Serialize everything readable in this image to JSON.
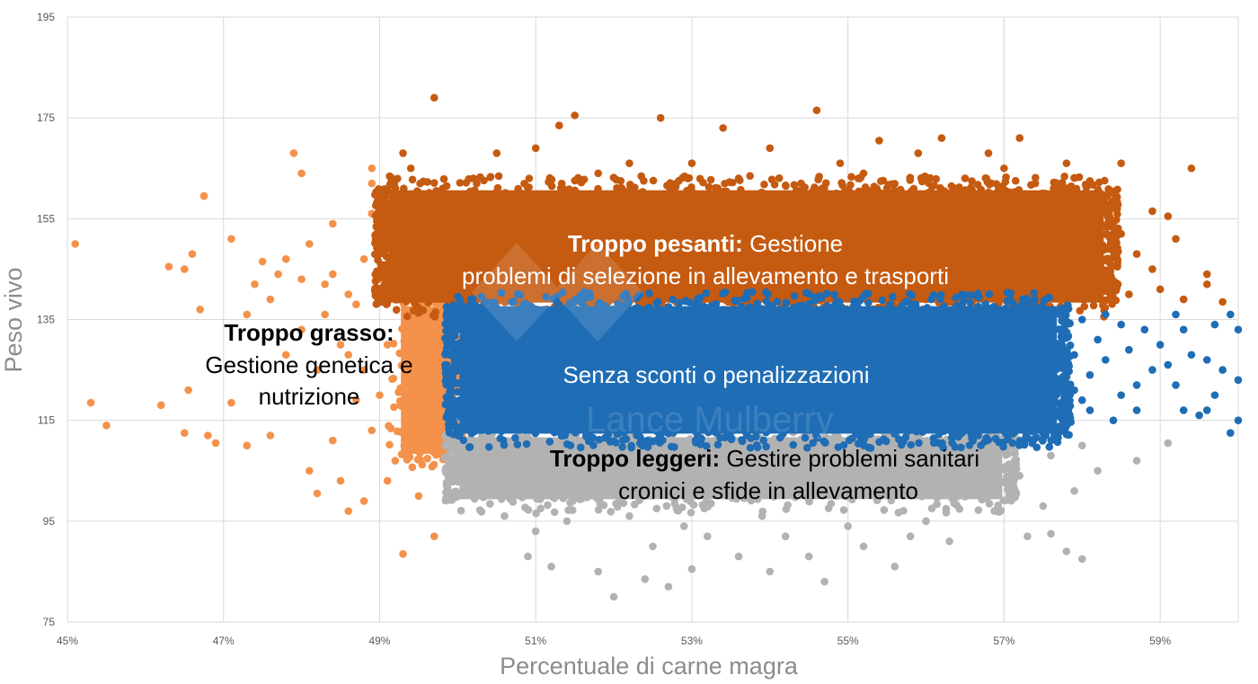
{
  "chart_data": {
    "type": "scatter",
    "title": "",
    "xlabel": "Percentuale di carne magra",
    "ylabel": "Peso vivo",
    "xlim": [
      45,
      60
    ],
    "ylim": [
      75,
      195
    ],
    "xticks": [
      45,
      47,
      49,
      51,
      53,
      55,
      57,
      59
    ],
    "xtick_labels": [
      "45%",
      "47%",
      "49%",
      "51%",
      "53%",
      "55%",
      "57%",
      "59%"
    ],
    "yticks": [
      75,
      95,
      115,
      135,
      155,
      175,
      195
    ],
    "ytick_labels": [
      "75",
      "95",
      "115",
      "135",
      "155",
      "175",
      "195"
    ],
    "grid": true,
    "legend": "none",
    "watermark": "Lance Mulberry",
    "series": [
      {
        "color": "#F4914A",
        "dense_region": [
          49.25,
          50.0,
          108,
          138
        ],
        "points": [
          [
            45.1,
            150
          ],
          [
            45.3,
            118.5
          ],
          [
            45.5,
            114
          ],
          [
            46.2,
            118
          ],
          [
            46.3,
            145.5
          ],
          [
            46.5,
            145
          ],
          [
            46.6,
            148
          ],
          [
            46.5,
            112.5
          ],
          [
            46.55,
            121
          ],
          [
            46.7,
            137
          ],
          [
            46.75,
            159.5
          ],
          [
            46.8,
            112
          ],
          [
            46.9,
            110.5
          ],
          [
            47.1,
            151
          ],
          [
            47.1,
            118.5
          ],
          [
            47.3,
            136
          ],
          [
            47.3,
            110
          ],
          [
            47.4,
            142
          ],
          [
            47.5,
            146.5
          ],
          [
            47.6,
            112
          ],
          [
            47.7,
            144
          ],
          [
            47.8,
            147
          ],
          [
            47.9,
            168
          ],
          [
            48.0,
            164
          ],
          [
            48.1,
            150
          ],
          [
            48.1,
            105
          ],
          [
            48.2,
            100.5
          ],
          [
            48.3,
            142
          ],
          [
            48.4,
            154
          ],
          [
            48.5,
            103
          ],
          [
            48.6,
            97
          ],
          [
            48.7,
            119
          ],
          [
            48.8,
            99
          ],
          [
            48.9,
            165
          ],
          [
            48.9,
            162
          ],
          [
            49.3,
            88.5
          ],
          [
            49.7,
            92
          ],
          [
            49.1,
            103
          ],
          [
            48.5,
            130
          ],
          [
            48.2,
            125
          ],
          [
            48.7,
            138
          ],
          [
            49.0,
            120
          ],
          [
            47.8,
            128
          ],
          [
            48.0,
            133
          ],
          [
            49.0,
            150
          ],
          [
            48.9,
            156
          ],
          [
            49.2,
            107
          ],
          [
            49.5,
            100
          ],
          [
            48.4,
            144
          ],
          [
            48.6,
            140
          ],
          [
            48.8,
            147
          ],
          [
            49.0,
            143
          ],
          [
            48.3,
            136
          ],
          [
            48.6,
            128
          ],
          [
            48.8,
            125
          ],
          [
            49.1,
            130
          ],
          [
            48.9,
            113
          ],
          [
            48.4,
            111
          ],
          [
            48.0,
            143
          ],
          [
            47.6,
            139
          ]
        ]
      },
      {
        "color": "#C55A11",
        "dense_region": [
          49.1,
          58.3,
          138,
          161
        ],
        "points": [
          [
            49.7,
            179
          ],
          [
            51.3,
            173.5
          ],
          [
            51.5,
            175.5
          ],
          [
            52.6,
            175
          ],
          [
            53.4,
            173
          ],
          [
            54.6,
            176.5
          ],
          [
            54.0,
            169
          ],
          [
            55.4,
            170.5
          ],
          [
            56.2,
            171
          ],
          [
            57.2,
            171
          ],
          [
            56.8,
            168
          ],
          [
            58.5,
            166
          ],
          [
            59.4,
            165
          ],
          [
            58.1,
            162.5
          ],
          [
            59.1,
            155.5
          ],
          [
            59.6,
            144
          ],
          [
            59.8,
            138.5
          ],
          [
            58.9,
            156.5
          ],
          [
            51.0,
            169
          ],
          [
            49.3,
            168
          ],
          [
            52.2,
            166
          ],
          [
            53.0,
            166
          ],
          [
            55.9,
            168
          ],
          [
            57.0,
            165
          ],
          [
            57.8,
            166
          ],
          [
            58.3,
            158
          ],
          [
            59.2,
            151
          ],
          [
            59.6,
            142
          ],
          [
            49.4,
            165
          ],
          [
            50.5,
            168
          ],
          [
            54.9,
            166
          ],
          [
            58.7,
            148
          ],
          [
            58.9,
            145
          ],
          [
            59.0,
            141
          ],
          [
            58.5,
            152
          ],
          [
            58.6,
            140
          ],
          [
            59.3,
            139
          ],
          [
            50.2,
            163
          ],
          [
            51.8,
            164
          ],
          [
            53.6,
            163
          ],
          [
            55.2,
            164
          ],
          [
            56.5,
            163
          ],
          [
            57.4,
            162
          ],
          [
            52.8,
            162
          ],
          [
            54.4,
            162
          ]
        ]
      },
      {
        "color": "#1F6DB5",
        "dense_region": [
          50.0,
          57.7,
          112,
          138
        ],
        "points": [
          [
            58.5,
            120
          ],
          [
            58.7,
            117
          ],
          [
            59.0,
            130
          ],
          [
            59.1,
            126
          ],
          [
            59.2,
            122
          ],
          [
            59.3,
            133
          ],
          [
            59.3,
            117
          ],
          [
            59.5,
            116
          ],
          [
            59.6,
            127
          ],
          [
            59.7,
            134
          ],
          [
            59.8,
            125
          ],
          [
            59.9,
            136
          ],
          [
            59.9,
            112.5
          ],
          [
            60.0,
            133
          ],
          [
            60.0,
            123
          ],
          [
            60.0,
            115
          ],
          [
            59.4,
            128
          ],
          [
            59.7,
            120
          ],
          [
            58.9,
            125
          ],
          [
            59.6,
            117
          ],
          [
            58.3,
            136
          ],
          [
            58.0,
            119
          ],
          [
            58.8,
            133
          ],
          [
            59.2,
            136
          ],
          [
            57.9,
            128
          ],
          [
            58.1,
            124
          ],
          [
            58.2,
            131
          ],
          [
            58.4,
            115
          ],
          [
            58.6,
            129
          ],
          [
            58.0,
            135
          ],
          [
            57.8,
            114
          ],
          [
            58.3,
            127
          ],
          [
            58.5,
            134
          ],
          [
            58.7,
            122
          ],
          [
            57.9,
            121
          ],
          [
            58.1,
            117
          ]
        ]
      },
      {
        "color": "#B2B2B2",
        "dense_region": [
          50.0,
          57.0,
          99,
          112
        ],
        "points": [
          [
            52.0,
            80
          ],
          [
            52.4,
            83.5
          ],
          [
            52.7,
            82
          ],
          [
            53.0,
            85.5
          ],
          [
            54.0,
            85
          ],
          [
            54.5,
            88
          ],
          [
            54.7,
            83
          ],
          [
            55.6,
            86
          ],
          [
            56.3,
            91
          ],
          [
            57.3,
            92
          ],
          [
            57.8,
            89
          ],
          [
            58.0,
            87.5
          ],
          [
            57.6,
            92.5
          ],
          [
            58.7,
            107
          ],
          [
            59.1,
            110.5
          ],
          [
            51.2,
            86
          ],
          [
            51.8,
            85
          ],
          [
            50.9,
            88
          ],
          [
            52.5,
            90
          ],
          [
            53.6,
            88
          ],
          [
            55.2,
            90
          ],
          [
            56.0,
            95
          ],
          [
            57.5,
            98
          ],
          [
            58.2,
            105
          ],
          [
            53.2,
            92
          ],
          [
            51.4,
            95
          ],
          [
            56.6,
            100.5
          ],
          [
            51.0,
            93
          ],
          [
            52.9,
            94
          ],
          [
            54.2,
            92
          ],
          [
            55.0,
            94
          ],
          [
            55.8,
            92
          ],
          [
            57.2,
            104
          ],
          [
            57.6,
            108
          ],
          [
            58.0,
            110
          ],
          [
            57.9,
            101
          ],
          [
            50.6,
            96
          ],
          [
            56.9,
            97
          ],
          [
            53.9,
            96
          ],
          [
            52.2,
            96
          ]
        ]
      }
    ],
    "annotations": {
      "heavy": {
        "bold": "Troppo pesanti:",
        "rest": " Gestione",
        "line2": "problemi di selezione in allevamento e trasporti"
      },
      "fat": {
        "bold": "Troppo grasso:",
        "line2": "Gestione genetica e",
        "line3": "nutrizione"
      },
      "ok": {
        "text": "Senza sconti o penalizzazioni"
      },
      "light": {
        "bold": "Troppo leggeri:",
        "rest": " Gestire problemi sanitari",
        "line2": "cronici e sfide in allevamento"
      }
    }
  }
}
